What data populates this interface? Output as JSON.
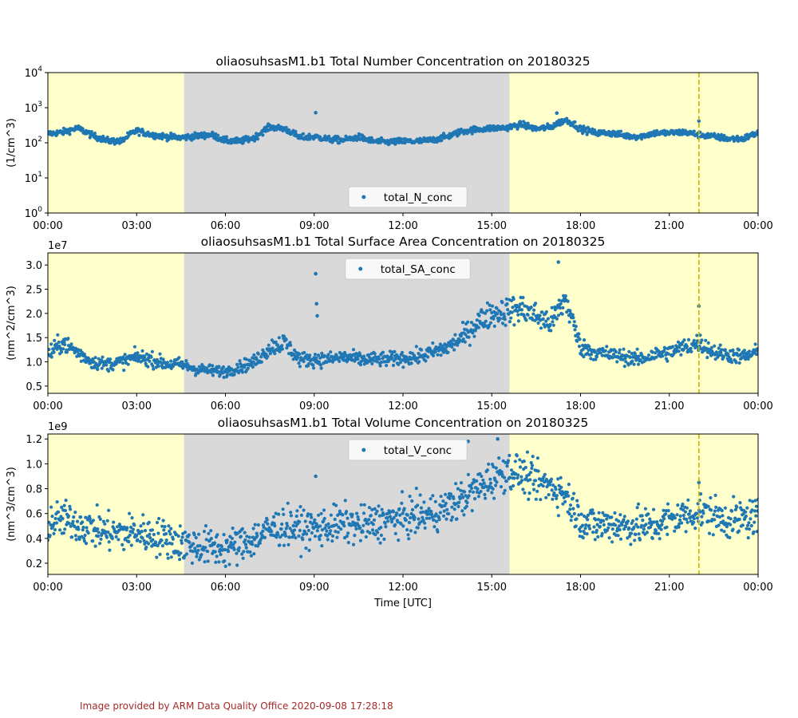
{
  "colors": {
    "series": "#1f77b4",
    "day_band": "#ffffcc",
    "night_band": "#d9d9d9",
    "marker_line": "#c8b400",
    "credit_text": "#a52a2a"
  },
  "xaxis": {
    "label": "Time [UTC]",
    "range_hours": [
      0,
      24
    ],
    "tick_hours": [
      0,
      3,
      6,
      9,
      12,
      15,
      18,
      21,
      24
    ],
    "tick_labels": [
      "00:00",
      "03:00",
      "06:00",
      "09:00",
      "12:00",
      "15:00",
      "18:00",
      "21:00",
      "00:00"
    ],
    "shading": [
      {
        "kind": "day",
        "start": 0,
        "end": 4.6
      },
      {
        "kind": "night",
        "start": 4.6,
        "end": 15.6
      },
      {
        "kind": "day",
        "start": 15.6,
        "end": 24
      }
    ],
    "marker_hour": 22.0
  },
  "chart_data": [
    {
      "type": "scatter",
      "title": "oliaosuhsasM1.b1 Total Number Concentration on 20180325",
      "ylabel": "(1/cm^3)",
      "yscale": "log",
      "ylim": [
        1,
        10000
      ],
      "yticks": [
        1,
        10,
        100,
        1000,
        10000
      ],
      "ytick_labels": [
        "10",
        "10",
        "10",
        "10",
        "10"
      ],
      "ytick_exponents": [
        "0",
        "1",
        "2",
        "3",
        "4"
      ],
      "offset_label": "",
      "legend": "total_N_conc",
      "legend_loc": "lower center",
      "x": [
        0.0,
        0.5,
        1.0,
        1.5,
        2.0,
        2.5,
        3.0,
        3.5,
        4.0,
        4.5,
        5.0,
        5.5,
        6.0,
        6.5,
        7.0,
        7.5,
        8.0,
        8.5,
        9.0,
        9.5,
        10.0,
        10.5,
        11.0,
        11.5,
        12.0,
        12.5,
        13.0,
        13.5,
        14.0,
        14.5,
        15.0,
        15.5,
        16.0,
        16.5,
        17.0,
        17.5,
        18.0,
        18.5,
        19.0,
        19.5,
        20.0,
        20.5,
        21.0,
        21.5,
        22.0,
        22.5,
        23.0,
        23.5,
        24.0
      ],
      "y": [
        180,
        200,
        260,
        160,
        115,
        110,
        220,
        170,
        150,
        140,
        155,
        170,
        115,
        110,
        140,
        280,
        250,
        140,
        150,
        125,
        120,
        145,
        110,
        105,
        110,
        110,
        120,
        150,
        210,
        240,
        260,
        270,
        330,
        250,
        280,
        450,
        250,
        190,
        190,
        160,
        150,
        190,
        190,
        200,
        170,
        150,
        130,
        130,
        190
      ],
      "outliers": [
        {
          "x": 9.05,
          "y": 720
        },
        {
          "x": 17.2,
          "y": 700
        },
        {
          "x": 22.0,
          "y": 420
        }
      ]
    },
    {
      "type": "scatter",
      "title": "oliaosuhsasM1.b1 Total Surface Area Concentration on 20180325",
      "ylabel": "(nm^2/cm^3)",
      "yscale": "linear",
      "ylim": [
        0.35,
        3.25
      ],
      "yticks": [
        0.5,
        1.0,
        1.5,
        2.0,
        2.5,
        3.0
      ],
      "ytick_labels": [
        "0.5",
        "1.0",
        "1.5",
        "2.0",
        "2.5",
        "3.0"
      ],
      "offset_label": "1e7",
      "legend": "total_SA_conc",
      "legend_loc": "upper center",
      "x": [
        0.0,
        0.5,
        1.0,
        1.5,
        2.0,
        2.5,
        3.0,
        3.5,
        4.0,
        4.5,
        5.0,
        5.5,
        6.0,
        6.5,
        7.0,
        7.5,
        8.0,
        8.5,
        9.0,
        9.5,
        10.0,
        10.5,
        11.0,
        11.5,
        12.0,
        12.5,
        13.0,
        13.5,
        14.0,
        14.5,
        15.0,
        15.5,
        16.0,
        16.5,
        17.0,
        17.5,
        18.0,
        18.5,
        19.0,
        19.5,
        20.0,
        20.5,
        21.0,
        21.5,
        22.0,
        22.5,
        23.0,
        23.5,
        24.0
      ],
      "y": [
        1.15,
        1.4,
        1.2,
        1.0,
        0.95,
        1.0,
        1.1,
        1.05,
        0.95,
        0.95,
        0.85,
        0.82,
        0.8,
        0.9,
        1.0,
        1.3,
        1.4,
        1.05,
        1.05,
        1.05,
        1.1,
        1.05,
        1.05,
        1.05,
        1.08,
        1.1,
        1.2,
        1.3,
        1.5,
        1.8,
        2.0,
        2.05,
        2.1,
        1.95,
        1.8,
        2.3,
        1.3,
        1.2,
        1.15,
        1.1,
        1.05,
        1.15,
        1.2,
        1.3,
        1.4,
        1.2,
        1.15,
        1.1,
        1.2
      ],
      "outliers": [
        {
          "x": 9.05,
          "y": 2.82
        },
        {
          "x": 9.08,
          "y": 2.2
        },
        {
          "x": 9.1,
          "y": 1.95
        },
        {
          "x": 17.25,
          "y": 3.06
        },
        {
          "x": 22.0,
          "y": 2.15
        }
      ]
    },
    {
      "type": "scatter",
      "title": "oliaosuhsasM1.b1 Total Volume Concentration on 20180325",
      "ylabel": "(nm^3/cm^3)",
      "yscale": "linear",
      "ylim": [
        0.11,
        1.24
      ],
      "yticks": [
        0.2,
        0.4,
        0.6,
        0.8,
        1.0,
        1.2
      ],
      "ytick_labels": [
        "0.2",
        "0.4",
        "0.6",
        "0.8",
        "1.0",
        "1.2"
      ],
      "offset_label": "1e9",
      "legend": "total_V_conc",
      "legend_loc": "upper center",
      "x": [
        0.0,
        0.5,
        1.0,
        1.5,
        2.0,
        2.5,
        3.0,
        3.5,
        4.0,
        4.5,
        5.0,
        5.5,
        6.0,
        6.5,
        7.0,
        7.5,
        8.0,
        8.5,
        9.0,
        9.5,
        10.0,
        10.5,
        11.0,
        11.5,
        12.0,
        12.5,
        13.0,
        13.5,
        14.0,
        14.5,
        15.0,
        15.5,
        16.0,
        16.5,
        17.0,
        17.5,
        18.0,
        18.5,
        19.0,
        19.5,
        20.0,
        20.5,
        21.0,
        21.5,
        22.0,
        22.5,
        23.0,
        23.5,
        24.0
      ],
      "y": [
        0.52,
        0.55,
        0.52,
        0.48,
        0.45,
        0.44,
        0.45,
        0.42,
        0.4,
        0.36,
        0.34,
        0.33,
        0.32,
        0.35,
        0.4,
        0.47,
        0.5,
        0.48,
        0.48,
        0.5,
        0.52,
        0.5,
        0.52,
        0.55,
        0.56,
        0.58,
        0.6,
        0.65,
        0.72,
        0.8,
        0.88,
        0.95,
        0.92,
        0.85,
        0.82,
        0.75,
        0.55,
        0.5,
        0.52,
        0.5,
        0.5,
        0.5,
        0.55,
        0.58,
        0.62,
        0.58,
        0.55,
        0.55,
        0.58
      ],
      "outliers": [
        {
          "x": 9.05,
          "y": 0.9
        },
        {
          "x": 14.2,
          "y": 1.18
        },
        {
          "x": 15.2,
          "y": 1.2
        },
        {
          "x": 22.0,
          "y": 0.85
        }
      ]
    }
  ],
  "credit": "Image provided by ARM Data Quality Office 2020-09-08 17:28:18"
}
